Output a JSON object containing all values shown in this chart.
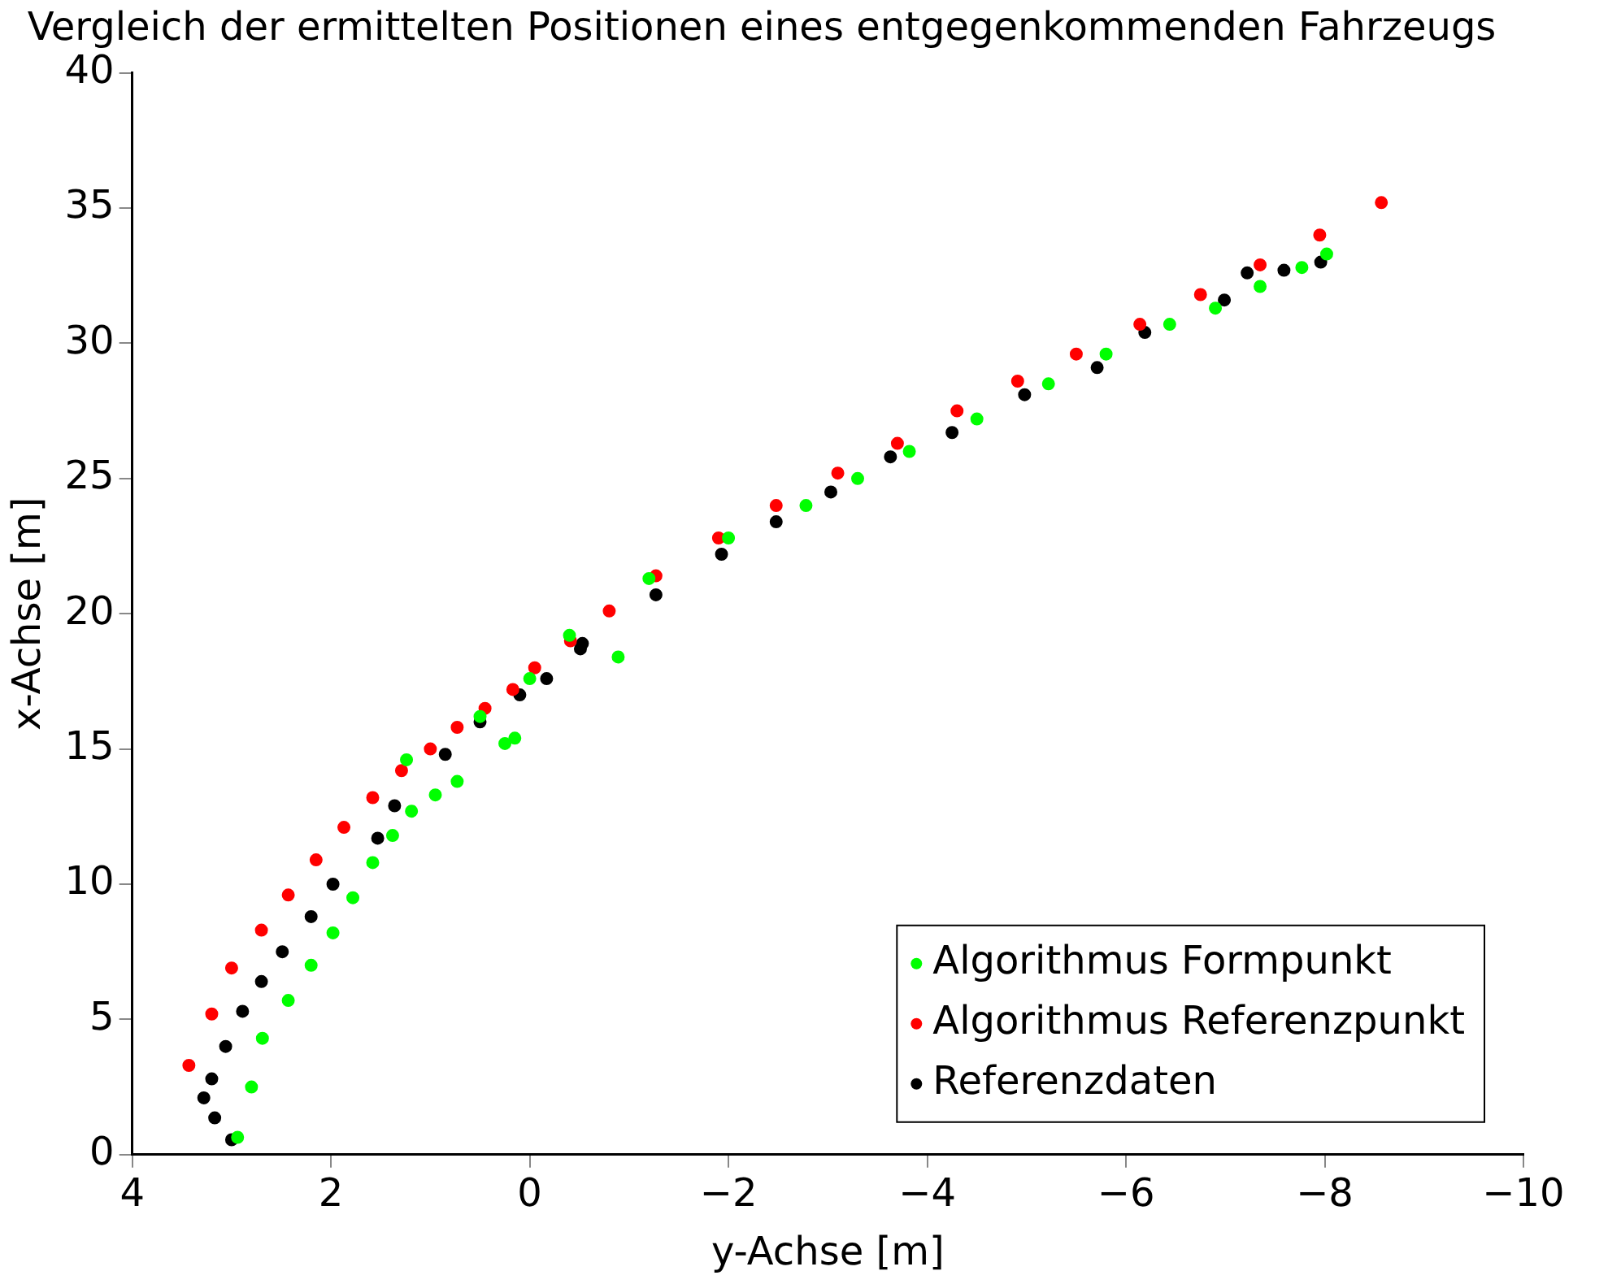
{
  "chart_data": {
    "type": "scatter",
    "title": "Vergleich der ermittelten Positionen eines entgegenkommenden Fahrzeugs",
    "xlabel": "y-Achse [m]",
    "ylabel": "x-Achse [m]",
    "xlim": [
      4,
      -10
    ],
    "xticks": [
      4,
      2,
      0,
      {
        "value": -2,
        "label": "−2"
      },
      {
        "value": -4,
        "label": "−4"
      },
      {
        "value": -6,
        "label": "−6"
      },
      {
        "value": -8,
        "label": "−8"
      },
      {
        "value": -10,
        "label": "−10"
      }
    ],
    "ylim": [
      0,
      40
    ],
    "yticks": [
      0,
      5,
      10,
      15,
      20,
      25,
      30,
      35,
      40
    ],
    "grid": false,
    "legend": "bottom right",
    "marker": "circle",
    "series": [
      {
        "name": "Algorithmus Formpunkt",
        "color": "#00ff00",
        "x": [
          2.94,
          2.8,
          2.69,
          2.43,
          2.2,
          1.98,
          1.78,
          1.58,
          1.38,
          1.19,
          0.95,
          0.73,
          1.24,
          0.25,
          0.15,
          -0.89,
          0.5,
          0.0,
          -0.4,
          -1.2,
          -2.0,
          -2.78,
          -3.3,
          -3.82,
          -4.5,
          -5.22,
          -5.8,
          -6.44,
          -6.9,
          -7.35,
          -7.77,
          -8.02
        ],
        "values": [
          0.64,
          2.5,
          4.3,
          5.7,
          7.0,
          8.2,
          9.5,
          10.8,
          11.8,
          12.7,
          13.3,
          13.8,
          14.6,
          15.2,
          15.4,
          18.4,
          16.2,
          17.6,
          19.2,
          21.3,
          22.8,
          24.0,
          25.0,
          26.0,
          27.2,
          28.5,
          29.6,
          30.7,
          31.3,
          32.1,
          32.8,
          33.3
        ]
      },
      {
        "name": "Algorithmus Referenzpunkt",
        "color": "#ff0000",
        "x": [
          3.43,
          3.2,
          3.0,
          2.7,
          2.43,
          2.15,
          1.87,
          1.58,
          1.29,
          1.0,
          0.73,
          0.45,
          0.17,
          -0.05,
          -0.41,
          -0.8,
          -1.27,
          -1.9,
          -2.48,
          -3.1,
          -3.7,
          -4.3,
          -4.91,
          -5.5,
          -6.14,
          -6.75,
          -7.35,
          -7.95,
          -8.57
        ],
        "values": [
          3.3,
          5.2,
          6.9,
          8.3,
          9.6,
          10.9,
          12.1,
          13.2,
          14.2,
          15.0,
          15.8,
          16.5,
          17.2,
          18.0,
          19.0,
          20.1,
          21.4,
          22.8,
          24.0,
          25.2,
          26.3,
          27.5,
          28.6,
          29.6,
          30.7,
          31.8,
          32.9,
          34.0,
          35.2
        ]
      },
      {
        "name": "Referenzdaten",
        "color": "#000000",
        "x": [
          3.0,
          3.17,
          3.28,
          3.2,
          3.06,
          2.89,
          2.7,
          2.49,
          2.2,
          1.98,
          1.53,
          1.36,
          0.85,
          0.5,
          0.1,
          -0.17,
          -0.51,
          -0.53,
          -1.27,
          -1.93,
          -2.48,
          -3.03,
          -3.63,
          -4.25,
          -4.98,
          -5.71,
          -6.19,
          -6.99,
          -7.22,
          -7.59,
          -7.96
        ],
        "values": [
          0.55,
          1.36,
          2.1,
          2.8,
          4.0,
          5.3,
          6.4,
          7.5,
          8.8,
          10.0,
          11.7,
          12.9,
          14.8,
          16.0,
          17.0,
          17.6,
          18.7,
          18.9,
          20.7,
          22.2,
          23.4,
          24.5,
          25.8,
          26.7,
          28.1,
          29.1,
          30.4,
          31.6,
          32.6,
          32.7,
          33.0
        ]
      }
    ]
  }
}
